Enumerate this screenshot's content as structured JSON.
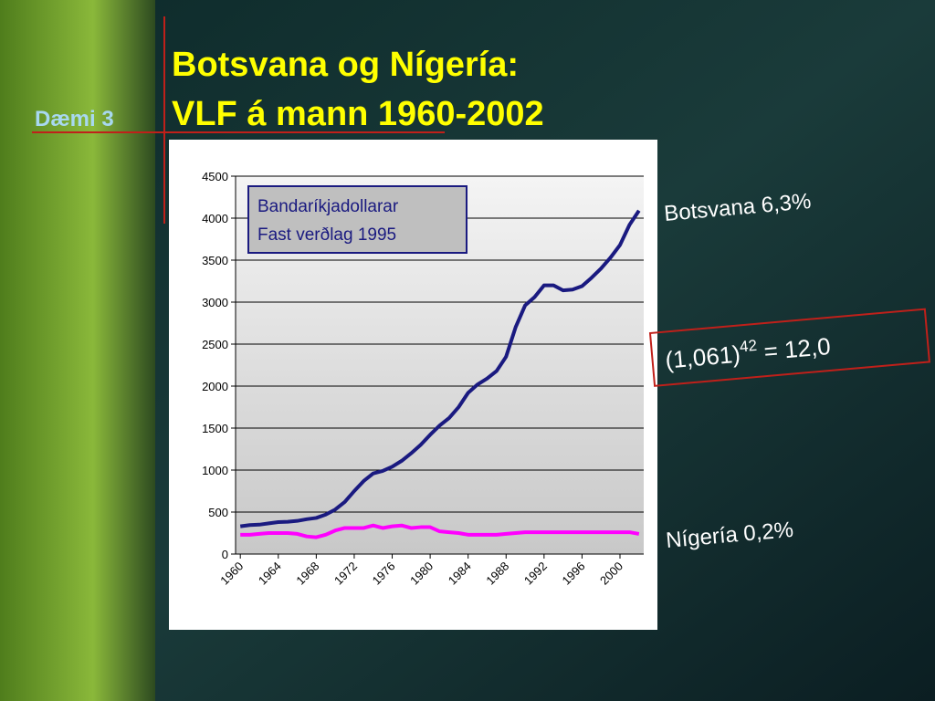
{
  "chart_data": {
    "type": "line",
    "title": [
      "Botsvana og Nígería:",
      "VLF á mann 1960-2002"
    ],
    "slide_label": "Dæmi 3",
    "box_text": [
      "Bandaríkjadollarar",
      "Fast verðlag 1995"
    ],
    "annotations": [
      "Botsvana 6,3%",
      "Nígería 0,2%"
    ],
    "equation": {
      "base": "(1,061)",
      "exponent": "42",
      "result": " = 12,0"
    },
    "x": [
      1960,
      1961,
      1962,
      1963,
      1964,
      1965,
      1966,
      1967,
      1968,
      1969,
      1970,
      1971,
      1972,
      1973,
      1974,
      1975,
      1976,
      1977,
      1978,
      1979,
      1980,
      1981,
      1982,
      1983,
      1984,
      1985,
      1986,
      1987,
      1988,
      1989,
      1990,
      1991,
      1992,
      1993,
      1994,
      1995,
      1996,
      1997,
      1998,
      1999,
      2000,
      2001,
      2002
    ],
    "series": [
      {
        "color": "#1a1a80",
        "values": [
          330,
          345,
          350,
          365,
          380,
          385,
          395,
          415,
          430,
          470,
          530,
          620,
          750,
          870,
          960,
          990,
          1040,
          1110,
          1200,
          1300,
          1420,
          1530,
          1620,
          1750,
          1920,
          2020,
          2090,
          2180,
          2350,
          2700,
          2960,
          3060,
          3200,
          3200,
          3140,
          3150,
          3190,
          3290,
          3400,
          3530,
          3680,
          3920,
          4090
        ]
      },
      {
        "color": "#ff00ff",
        "values": [
          230,
          230,
          240,
          250,
          250,
          250,
          240,
          210,
          200,
          230,
          280,
          310,
          310,
          310,
          340,
          310,
          330,
          340,
          310,
          320,
          320,
          270,
          260,
          250,
          230,
          230,
          230,
          230,
          240,
          250,
          260,
          260,
          260,
          260,
          260,
          260,
          260,
          260,
          260,
          260,
          260,
          260,
          240
        ]
      }
    ],
    "xlim": [
      1959.5,
      2002.5
    ],
    "xticks": [
      1960,
      1964,
      1968,
      1972,
      1976,
      1980,
      1984,
      1988,
      1992,
      1996,
      2000
    ],
    "ylim": [
      0,
      4500
    ],
    "yticks": [
      0,
      500,
      1000,
      1500,
      2000,
      2500,
      3000,
      3500,
      4000,
      4500
    ],
    "grid": true
  }
}
